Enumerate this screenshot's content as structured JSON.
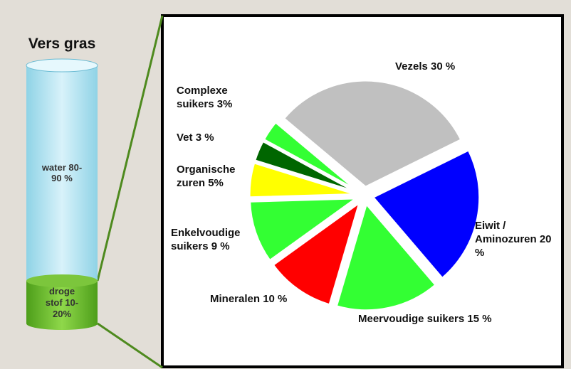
{
  "cylinder": {
    "title": "Vers gras",
    "top_label": "water 80-90 %",
    "bottom_label": "droge stof 10-20%"
  },
  "chart_data": {
    "type": "pie",
    "categories": [
      "Vezels",
      "Eiwit / Aminozuren",
      "Meervoudige suikers",
      "Mineralen",
      "Enkelvoudige suikers",
      "Organische zuren",
      "Vet",
      "Complexe suikers"
    ],
    "values": [
      30,
      20,
      15,
      10,
      9,
      5,
      3,
      3
    ],
    "value_labels": [
      "30 %",
      "20 %",
      "15 %",
      "10 %",
      "9 %",
      "5%",
      "3 %",
      "3%"
    ],
    "colors": [
      "#c0c0c0",
      "#0000ff",
      "#33ff33",
      "#ff0000",
      "#33ff33",
      "#ffff00",
      "#006600",
      "#33ff33"
    ]
  }
}
